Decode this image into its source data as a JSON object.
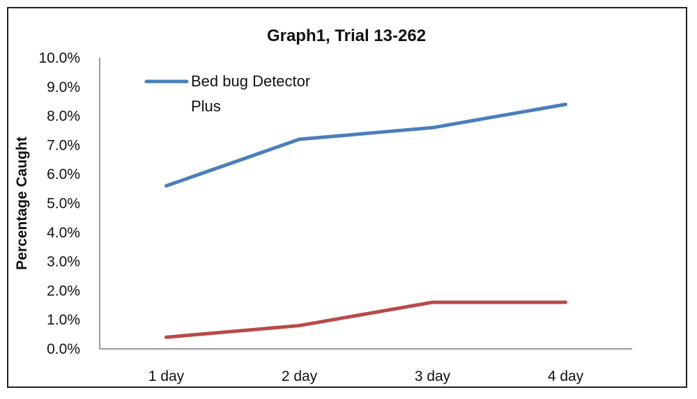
{
  "chart_data": {
    "type": "line",
    "title": "Graph1, Trial 13-262",
    "xlabel": "",
    "ylabel": "Percentage Caught",
    "categories": [
      "1 day",
      "2 day",
      "3 day",
      "4 day"
    ],
    "yticks": [
      "0.0%",
      "1.0%",
      "2.0%",
      "3.0%",
      "4.0%",
      "5.0%",
      "6.0%",
      "7.0%",
      "8.0%",
      "9.0%",
      "10.0%"
    ],
    "ylim": [
      0,
      10
    ],
    "grid": false,
    "legend_position": "top-left",
    "legend_lines": [
      "Bed bug Detector",
      "Plus"
    ],
    "series": [
      {
        "name": "Bed bug Detector Plus",
        "color": "#4a7ebb",
        "values": [
          5.6,
          7.2,
          7.6,
          8.4
        ]
      },
      {
        "color": "#b94a48",
        "values": [
          0.4,
          0.8,
          1.6,
          1.6
        ]
      }
    ]
  }
}
